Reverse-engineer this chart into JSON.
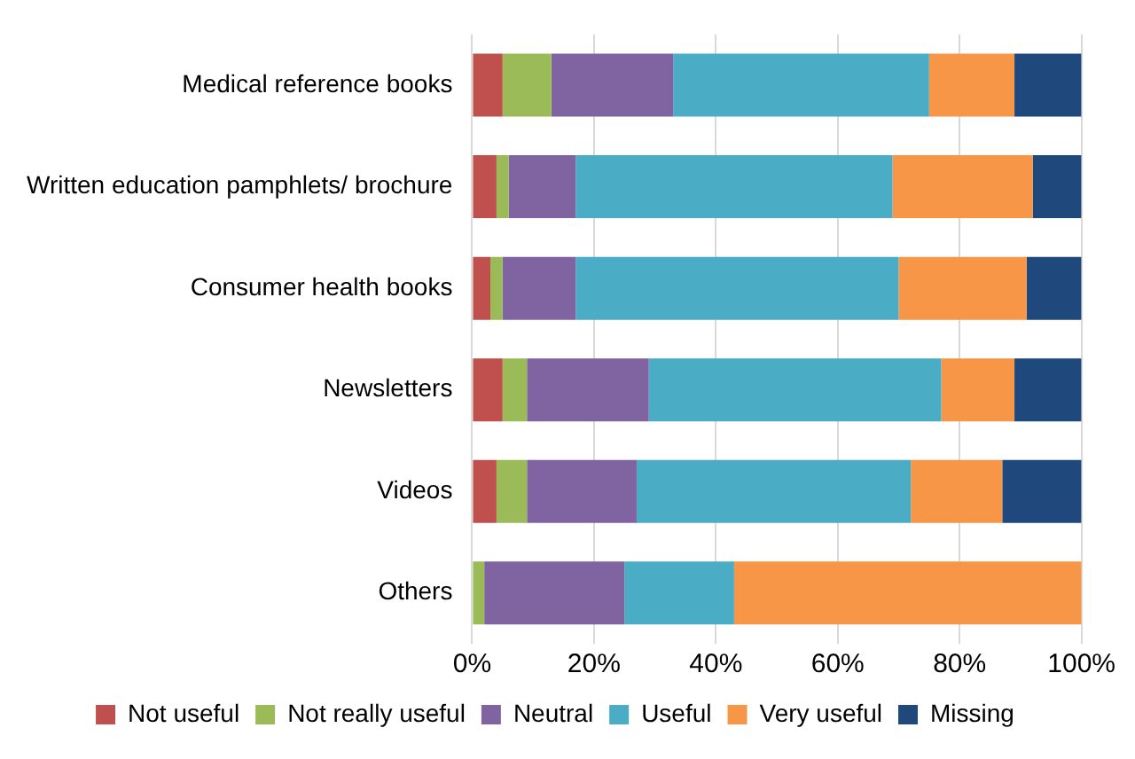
{
  "chart_data": {
    "type": "bar",
    "orientation": "horizontal",
    "stacked": true,
    "categories": [
      "Medical reference books",
      "Written education pamphlets/ brochure",
      "Consumer health books",
      "Newsletters",
      "Videos",
      "Others"
    ],
    "series": [
      {
        "name": "Not useful",
        "color": "#c0504d",
        "values": [
          5,
          4,
          3,
          5,
          4,
          0
        ]
      },
      {
        "name": "Not really useful",
        "color": "#9bbb59",
        "values": [
          8,
          2,
          2,
          4,
          5,
          2
        ]
      },
      {
        "name": "Neutral",
        "color": "#8064a2",
        "values": [
          20,
          11,
          12,
          20,
          18,
          23
        ]
      },
      {
        "name": "Useful",
        "color": "#4bacc6",
        "values": [
          42,
          52,
          53,
          48,
          45,
          18
        ]
      },
      {
        "name": "Very useful",
        "color": "#f79646",
        "values": [
          14,
          23,
          21,
          12,
          15,
          57
        ]
      },
      {
        "name": "Missing",
        "color": "#1f497d",
        "values": [
          11,
          8,
          9,
          11,
          13,
          0
        ]
      }
    ],
    "xlim": [
      0,
      100
    ],
    "xticks": [
      {
        "value": 0,
        "label": "0%"
      },
      {
        "value": 20,
        "label": "20%"
      },
      {
        "value": 40,
        "label": "40%"
      },
      {
        "value": 60,
        "label": "60%"
      },
      {
        "value": 80,
        "label": "80%"
      },
      {
        "value": 100,
        "label": "100%"
      }
    ],
    "grid": "x",
    "legend": "bottom"
  }
}
